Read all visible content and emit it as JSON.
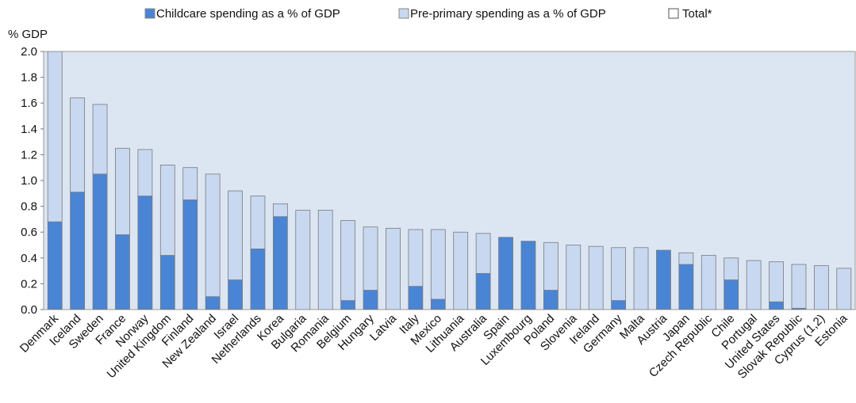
{
  "chart_data": {
    "type": "stacked_bar",
    "y_axis_label": "% GDP",
    "total_label": "Total*",
    "categories": [
      "Denmark",
      "Iceland",
      "Sweden",
      "France",
      "Norway",
      "United Kingdom",
      "Finland",
      "New Zealand",
      "Israel",
      "Netherlands",
      "Korea",
      "Bulgaria",
      "Romania",
      "Belgium",
      "Hungary",
      "Latvia",
      "Italy",
      "Mexico",
      "Lithuania",
      "Australia",
      "Spain",
      "Luxembourg",
      "Poland",
      "Slovenia",
      "Ireland",
      "Germany",
      "Malta",
      "Austria",
      "Japan",
      "Czech Republic",
      "Chile",
      "Portugal",
      "United States",
      "Slovak Republic",
      "Cyprus (1,2)",
      "Estonia"
    ],
    "series": [
      {
        "name": "Childcare spending as a % of GDP",
        "color": "#4a84d4",
        "values": [
          0.68,
          0.91,
          1.05,
          0.58,
          0.88,
          0.42,
          0.85,
          0.1,
          0.23,
          0.47,
          0.72,
          0,
          0,
          0.07,
          0.15,
          0,
          0.18,
          0.08,
          0,
          0.28,
          0.56,
          0.53,
          0.15,
          0,
          0,
          0.07,
          0,
          0.46,
          0.35,
          0,
          0.23,
          0,
          0.06,
          0.01,
          0,
          0
        ]
      },
      {
        "name": "Pre-primary spending as a % of GDP",
        "color": "#c8d8f0",
        "values": [
          1.32,
          0.73,
          0.54,
          0.67,
          0.36,
          0.7,
          0.25,
          0.95,
          0.69,
          0.41,
          0.1,
          0.77,
          0.77,
          0.62,
          0.49,
          0.63,
          0.44,
          0.54,
          0.6,
          0.31,
          0,
          0,
          0.37,
          0.5,
          0.49,
          0.41,
          0.48,
          0,
          0.09,
          0.42,
          0.17,
          0.38,
          0.31,
          0.34,
          0.34,
          0.32
        ]
      }
    ],
    "ylim": [
      0,
      2
    ],
    "yticks": [
      {
        "value": 0,
        "label": "0.0"
      },
      0.2,
      0.4,
      0.6,
      0.8,
      {
        "value": 1,
        "label": "1.0"
      },
      1.2,
      1.4,
      1.6,
      1.8,
      {
        "value": 2,
        "label": "2.0"
      }
    ],
    "grid": false,
    "legend": "top"
  }
}
